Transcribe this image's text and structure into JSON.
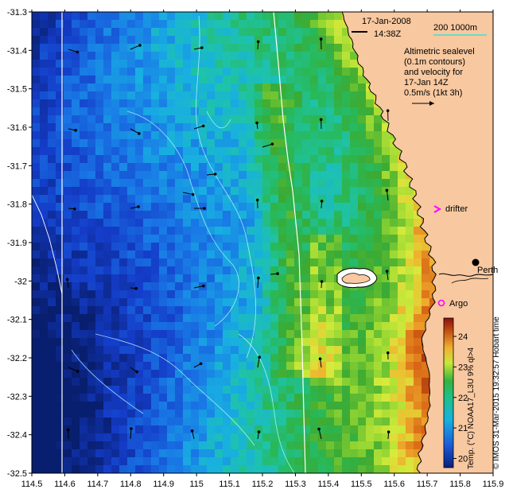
{
  "header": {
    "date": "17-Jan-2008",
    "time": "14:38Z"
  },
  "isobath_legend": {
    "label": "200  1000m",
    "color": "#40e0d0"
  },
  "velocity_note": {
    "lines": [
      "Altimetric sealevel",
      "(0.1m contours)",
      "and velocity for",
      "17-Jan 14Z",
      "0.5m/s (1kt 3h)"
    ]
  },
  "markers": {
    "drifter_label": "drifter",
    "argo_label": "Argo",
    "perth_label": "Perth",
    "drifter_color": "#ff00ff",
    "argo_color": "#ff00ff"
  },
  "axes": {
    "x_ticks": [
      "114.5",
      "114.6",
      "114.7",
      "114.8",
      "114.9",
      "115",
      "115.1",
      "115.2",
      "115.3",
      "115.4",
      "115.5",
      "115.6",
      "115.7",
      "115.8",
      "115.9"
    ],
    "y_ticks": [
      "-31.3",
      "-31.4",
      "-31.5",
      "-31.6",
      "-31.7",
      "-31.8",
      "-31.9",
      "-32",
      "-32.1",
      "-32.2",
      "-32.3",
      "-32.4",
      "-32.5"
    ]
  },
  "colorbar": {
    "ticks": [
      "20",
      "21",
      "22",
      "23",
      "24"
    ],
    "range": [
      19.7,
      24.6
    ],
    "label": "Temp. (°C) NOAA17_L3U 9% ql>4"
  },
  "credit": "© IMOS 31-Mar-2015 19:32:57 Hobart time",
  "colors": {
    "land": "#f8c8a0",
    "landmask_white": "#ffffff",
    "contour": "#c8ffff"
  }
}
